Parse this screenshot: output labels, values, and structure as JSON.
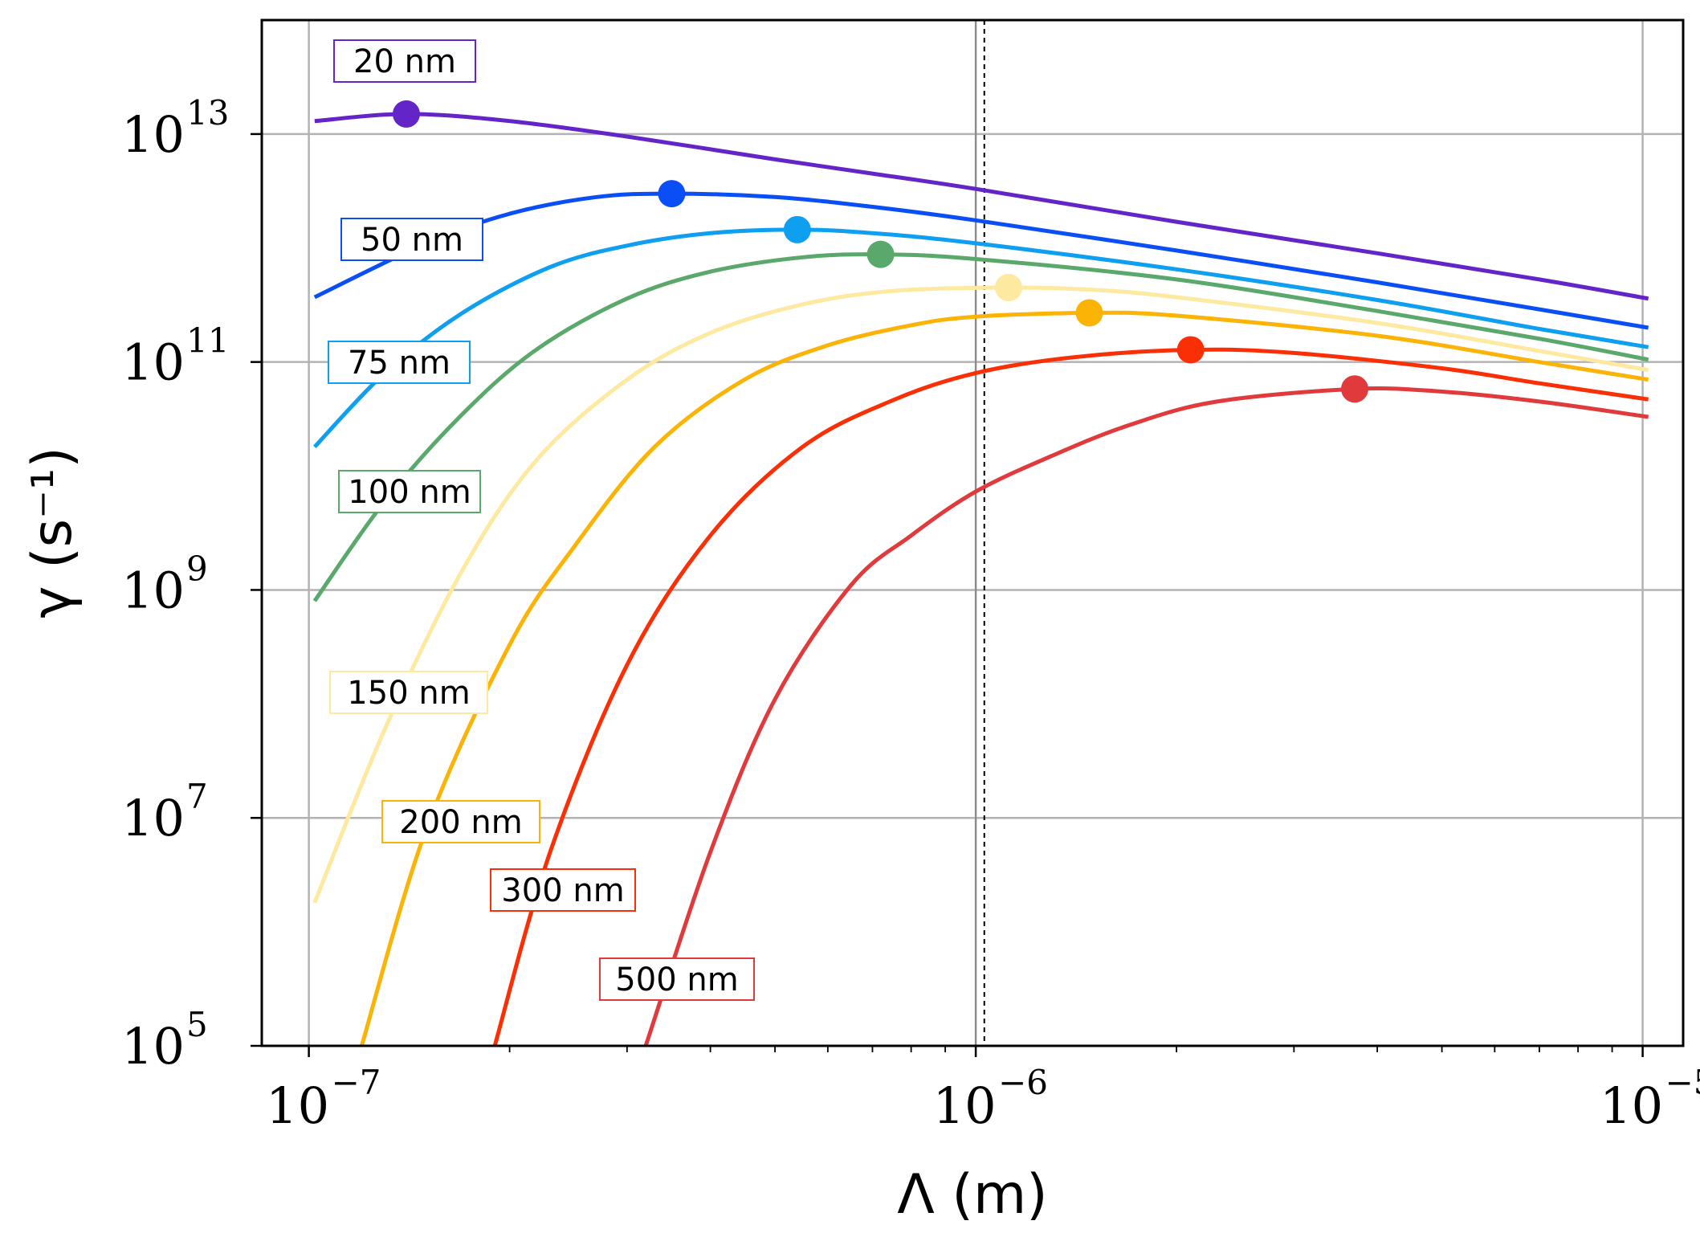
{
  "chart_data": {
    "type": "line",
    "xscale": "log",
    "yscale": "log",
    "xlim": [
      8.5e-08,
      1.15e-05
    ],
    "ylim": [
      100000.0,
      100000000000000.0
    ],
    "xlabel": "Λ (m)",
    "ylabel": "γ (s⁻¹)",
    "x_ticks": [
      {
        "value": 1e-07,
        "base": "10",
        "exp": "−7"
      },
      {
        "value": 1e-06,
        "base": "10",
        "exp": "−6"
      },
      {
        "value": 1e-05,
        "base": "10",
        "exp": "−5"
      }
    ],
    "y_ticks": [
      {
        "value": 100000.0,
        "base": "10",
        "exp": "5"
      },
      {
        "value": 10000000.0,
        "base": "10",
        "exp": "7"
      },
      {
        "value": 1000000000.0,
        "base": "10",
        "exp": "9"
      },
      {
        "value": 100000000000.0,
        "base": "10",
        "exp": "11"
      },
      {
        "value": 10000000000000.0,
        "base": "10",
        "exp": "13"
      }
    ],
    "grid": true,
    "vertical_lines": [
      {
        "x": 1e-06,
        "style": "solid",
        "color": "#888888"
      },
      {
        "x": 1.03e-06,
        "style": "dashed",
        "color": "#000000"
      }
    ],
    "series": [
      {
        "name": "20 nm",
        "color": "#6324c8",
        "x": [
          1.02e-07,
          1.4e-07,
          2e-07,
          3e-07,
          5e-07,
          7e-07,
          1e-06,
          2e-06,
          4e-06,
          7e-06,
          1.02e-05
        ],
        "y": [
          13000000000000.0,
          15000000000000.0,
          13000000000000.0,
          9500000000000.0,
          6000000000000.0,
          4500000000000.0,
          3300000000000.0,
          1700000000000.0,
          900000000000.0,
          530000000000.0,
          360000000000.0
        ],
        "peak": {
          "x": 1.4e-07,
          "y": 15000000000000.0
        }
      },
      {
        "name": "50 nm",
        "color": "#0a4ff5",
        "x": [
          1.02e-07,
          1.5e-07,
          2e-07,
          2.7e-07,
          3.5e-07,
          5e-07,
          7e-07,
          1e-06,
          2e-06,
          4e-06,
          7e-06,
          1.02e-05
        ],
        "y": [
          370000000000.0,
          1100000000000.0,
          2000000000000.0,
          2800000000000.0,
          3000000000000.0,
          2800000000000.0,
          2300000000000.0,
          1750000000000.0,
          950000000000.0,
          500000000000.0,
          290000000000.0,
          200000000000.0
        ],
        "peak": {
          "x": 3.5e-07,
          "y": 3000000000000.0
        }
      },
      {
        "name": "75 nm",
        "color": "#0f9ff0",
        "x": [
          1.02e-07,
          1.3e-07,
          1.7e-07,
          2.3e-07,
          3e-07,
          4e-07,
          5.4e-07,
          7e-07,
          1e-06,
          2e-06,
          4e-06,
          7e-06,
          1.02e-05
        ],
        "y": [
          18000000000.0,
          80000000000.0,
          270000000000.0,
          680000000000.0,
          1050000000000.0,
          1350000000000.0,
          1450000000000.0,
          1350000000000.0,
          1100000000000.0,
          650000000000.0,
          350000000000.0,
          195000000000.0,
          135000000000.0
        ],
        "peak": {
          "x": 5.4e-07,
          "y": 1450000000000.0
        }
      },
      {
        "name": "100 nm",
        "color": "#5aa86c",
        "x": [
          1.02e-07,
          1.3e-07,
          1.7e-07,
          2.2e-07,
          3e-07,
          4e-07,
          5.5e-07,
          7.2e-07,
          1e-06,
          2e-06,
          4e-06,
          7e-06,
          1.02e-05
        ],
        "y": [
          800000000.0,
          6000000000.0,
          35000000000.0,
          130000000000.0,
          360000000000.0,
          620000000000.0,
          830000000000.0,
          880000000000.0,
          800000000000.0,
          530000000000.0,
          280000000000.0,
          160000000000.0,
          105000000000.0
        ],
        "peak": {
          "x": 7.2e-07,
          "y": 880000000000.0
        }
      },
      {
        "name": "150 nm",
        "color": "#fde9a0",
        "x": [
          1.02e-07,
          1.3e-07,
          1.7e-07,
          2.2e-07,
          3e-07,
          4e-07,
          5.5e-07,
          7.5e-07,
          1.12e-06,
          1.5e-06,
          2e-06,
          4e-06,
          7e-06,
          1.02e-05
        ],
        "y": [
          1800000.0,
          60000000.0,
          1500000000.0,
          14000000000.0,
          70000000000.0,
          180000000000.0,
          320000000000.0,
          420000000000.0,
          450000000000.0,
          430000000000.0,
          370000000000.0,
          220000000000.0,
          125000000000.0,
          85000000000.0
        ],
        "peak": {
          "x": 1.12e-06,
          "y": 450000000000.0
        }
      },
      {
        "name": "200 nm",
        "color": "#fbb305",
        "x": [
          1.2e-07,
          1.5e-07,
          2e-07,
          2.5e-07,
          3.3e-07,
          4.5e-07,
          6e-07,
          8e-07,
          1e-06,
          1.48e-06,
          2e-06,
          4e-06,
          7e-06,
          1.02e-05
        ],
        "y": [
          100000.0,
          8000000.0,
          330000000.0,
          2400000000.0,
          18000000000.0,
          70000000000.0,
          140000000000.0,
          210000000000.0,
          250000000000.0,
          270000000000.0,
          255000000000.0,
          170000000000.0,
          100000000000.0,
          70000000000.0
        ],
        "peak": {
          "x": 1.48e-06,
          "y": 270000000000.0
        }
      },
      {
        "name": "300 nm",
        "color": "#fa2f05",
        "x": [
          1.9e-07,
          2.3e-07,
          3e-07,
          4e-07,
          5.5e-07,
          7.5e-07,
          1e-06,
          1.4e-06,
          2.1e-06,
          3e-06,
          5e-06,
          7e-06,
          1.02e-05
        ],
        "y": [
          100000.0,
          5000000.0,
          220000000.0,
          3000000000.0,
          18000000000.0,
          46000000000.0,
          80000000000.0,
          110000000000.0,
          128000000000.0,
          120000000000.0,
          88000000000.0,
          65000000000.0,
          47000000000.0
        ],
        "peak": {
          "x": 2.1e-06,
          "y": 128000000000.0
        }
      },
      {
        "name": "500 nm",
        "color": "#e03a3c",
        "x": [
          3.2e-07,
          4e-07,
          5e-07,
          6.5e-07,
          8e-07,
          1e-06,
          1.3e-06,
          1.7e-06,
          2.3e-06,
          3.7e-06,
          5e-06,
          7e-06,
          1.02e-05
        ],
        "y": [
          100000.0,
          5000000.0,
          110000000.0,
          1100000000.0,
          3000000000.0,
          7300000000.0,
          15000000000.0,
          28000000000.0,
          45000000000.0,
          58000000000.0,
          55000000000.0,
          45000000000.0,
          33000000000.0
        ],
        "peak": {
          "x": 3.7e-06,
          "y": 58000000000.0
        }
      }
    ]
  }
}
